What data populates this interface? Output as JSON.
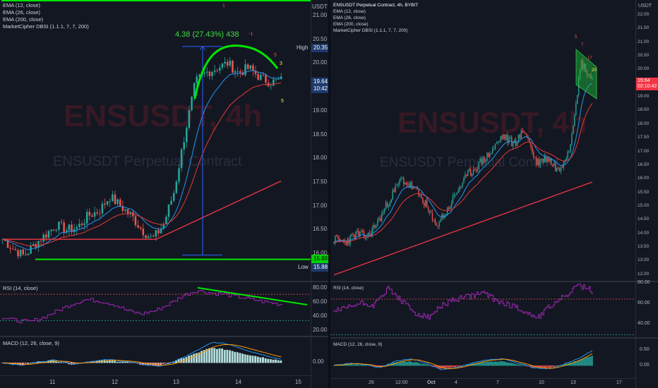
{
  "left": {
    "legend": [
      "EMA (12, close)",
      "EMA (26, close)",
      "EMA (200, close)",
      "MarketCipher DBSI (1.1.1, 7, 7, 200)"
    ],
    "currency": "USDT",
    "watermark_symbol": "ENSUSDT, 4h",
    "watermark_name": "ENSUSDT Perpetual Contract",
    "price_ticks": [
      "21.00",
      "20.50",
      "20.00",
      "19.50",
      "19.00",
      "18.50",
      "18.00",
      "17.50",
      "17.00",
      "16.50",
      "16.00"
    ],
    "high_label": "High",
    "high_value": "20.35",
    "low_label": "Low",
    "low_value": "15.88",
    "price_tag": "19.64",
    "countdown": "10:42",
    "line_level": "15.88",
    "measure_text": "4.38 (27.43%) 438",
    "dbsi_marks": [
      "1",
      "-1",
      "5",
      "3",
      "5"
    ],
    "rsi_legend": "RSI (14, close)",
    "rsi_ticks": [
      "80.00",
      "60.00",
      "40.00",
      "20.00"
    ],
    "macd_legend": "MACD (12, 26, close, 9)",
    "macd_ticks": [
      "0.00"
    ],
    "time_ticks": [
      "11",
      "12",
      "13",
      "14",
      "15"
    ]
  },
  "right": {
    "title": "ENSUSDT Perpetual Contract, 4h, BYBIT",
    "legend": [
      "EMA (12, close)",
      "EMA (26, close)",
      "EMA (200, close)",
      "MarketCipher DBSI (1.1.1, 7, 7, 200)"
    ],
    "currency": "USDT",
    "watermark_symbol": "ENSUSDT, 4h",
    "watermark_name": "ENSUSDT Perpetual Contract",
    "price_ticks": [
      "22.00",
      "21.50",
      "21.00",
      "20.50",
      "20.00",
      "19.50",
      "19.00",
      "18.50",
      "18.00",
      "17.50",
      "17.00",
      "16.50",
      "16.00",
      "15.50",
      "15.00",
      "14.50",
      "14.00",
      "13.50",
      "13.00",
      "12.00"
    ],
    "price_tag": "19.64",
    "countdown": "02:10:42",
    "dbsi_marks": [
      "5",
      "7",
      "17",
      "20"
    ],
    "rsi_legend": "RSI (14, close)",
    "rsi_ticks": [
      "80.00",
      "60.00",
      "40.00"
    ],
    "macd_legend": "MACD (12, 26, close, 9)",
    "macd_ticks": [
      "0.50",
      "0.00"
    ],
    "time_ticks": [
      "26",
      "12:00",
      "Oct",
      "4",
      "7",
      "10",
      "13",
      "17"
    ]
  },
  "colors": {
    "up": "#26a69a",
    "down": "#ef5350",
    "ema12": "#2196f3",
    "ema26": "#e53935",
    "ema200": "#f23645",
    "rsi": "#9c27b0",
    "green_line": "#00e600"
  }
}
